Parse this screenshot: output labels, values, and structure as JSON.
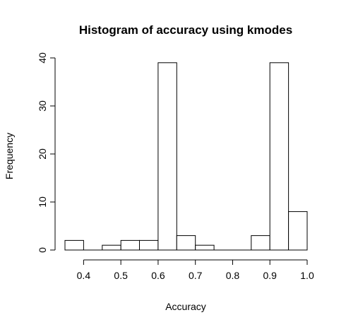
{
  "chart_data": {
    "type": "bar",
    "title": "Histogram of accuracy using kmodes",
    "xlabel": "Accuracy",
    "ylabel": "Frequency",
    "bins": [
      {
        "start": 0.35,
        "end": 0.4,
        "count": 2
      },
      {
        "start": 0.4,
        "end": 0.45,
        "count": 0
      },
      {
        "start": 0.45,
        "end": 0.5,
        "count": 1
      },
      {
        "start": 0.5,
        "end": 0.55,
        "count": 2
      },
      {
        "start": 0.55,
        "end": 0.6,
        "count": 2
      },
      {
        "start": 0.6,
        "end": 0.65,
        "count": 39
      },
      {
        "start": 0.65,
        "end": 0.7,
        "count": 3
      },
      {
        "start": 0.7,
        "end": 0.75,
        "count": 1
      },
      {
        "start": 0.75,
        "end": 0.8,
        "count": 0
      },
      {
        "start": 0.8,
        "end": 0.85,
        "count": 0
      },
      {
        "start": 0.85,
        "end": 0.9,
        "count": 3
      },
      {
        "start": 0.9,
        "end": 0.95,
        "count": 39
      },
      {
        "start": 0.95,
        "end": 1.0,
        "count": 8
      }
    ],
    "xlim": [
      0.35,
      1.0
    ],
    "ylim": [
      0,
      40
    ],
    "x_ticks": [
      "0.4",
      "0.5",
      "0.6",
      "0.7",
      "0.8",
      "0.9",
      "1.0"
    ],
    "y_ticks": [
      "0",
      "10",
      "20",
      "30",
      "40"
    ],
    "grid": false,
    "bar_fill": "#ffffff",
    "bar_stroke": "#000000"
  }
}
